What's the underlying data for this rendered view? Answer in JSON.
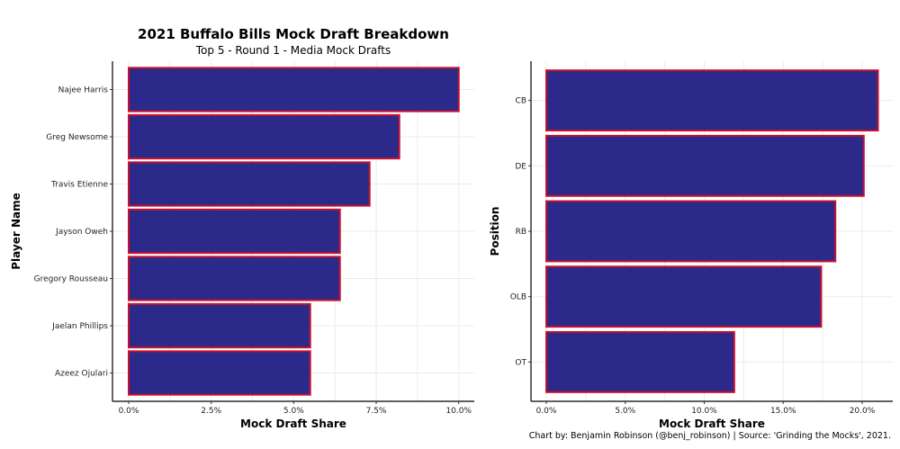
{
  "title": "2021 Buffalo Bills Mock Draft Breakdown",
  "subtitle": "Top 5 - Round 1 - Media Mock Drafts",
  "caption": "Chart by: Benjamin Robinson (@benj_robinson) | Source: 'Grinding the Mocks', 2021.",
  "colors": {
    "bar_fill": "#2b2a8a",
    "bar_stroke": "#c8102e"
  },
  "chart_data": [
    {
      "type": "bar",
      "orientation": "horizontal",
      "categories": [
        "Najee Harris",
        "Greg Newsome",
        "Travis Etienne",
        "Jayson Oweh",
        "Gregory Rousseau",
        "Jaelan Phillips",
        "Azeez Ojulari"
      ],
      "values": [
        10.0,
        8.2,
        7.3,
        6.4,
        6.4,
        5.5,
        5.5
      ],
      "xlabel": "Mock Draft Share",
      "ylabel": "Player Name",
      "xlim": [
        0,
        10.4
      ],
      "xticks": [
        "0.0%",
        "2.5%",
        "5.0%",
        "7.5%",
        "10.0%"
      ],
      "tick_values": [
        0,
        2.5,
        5,
        7.5,
        10
      ],
      "grid": true
    },
    {
      "type": "bar",
      "orientation": "horizontal",
      "categories": [
        "CB",
        "DE",
        "RB",
        "OLB",
        "OT"
      ],
      "values": [
        21.0,
        20.1,
        18.3,
        17.4,
        11.9
      ],
      "xlabel": "Mock Draft Share",
      "ylabel": "Position",
      "xlim": [
        0,
        22.2
      ],
      "xticks": [
        "0.0%",
        "5.0%",
        "10.0%",
        "15.0%",
        "20.0%"
      ],
      "tick_values": [
        0,
        5,
        10,
        15,
        20
      ],
      "grid": true
    }
  ]
}
